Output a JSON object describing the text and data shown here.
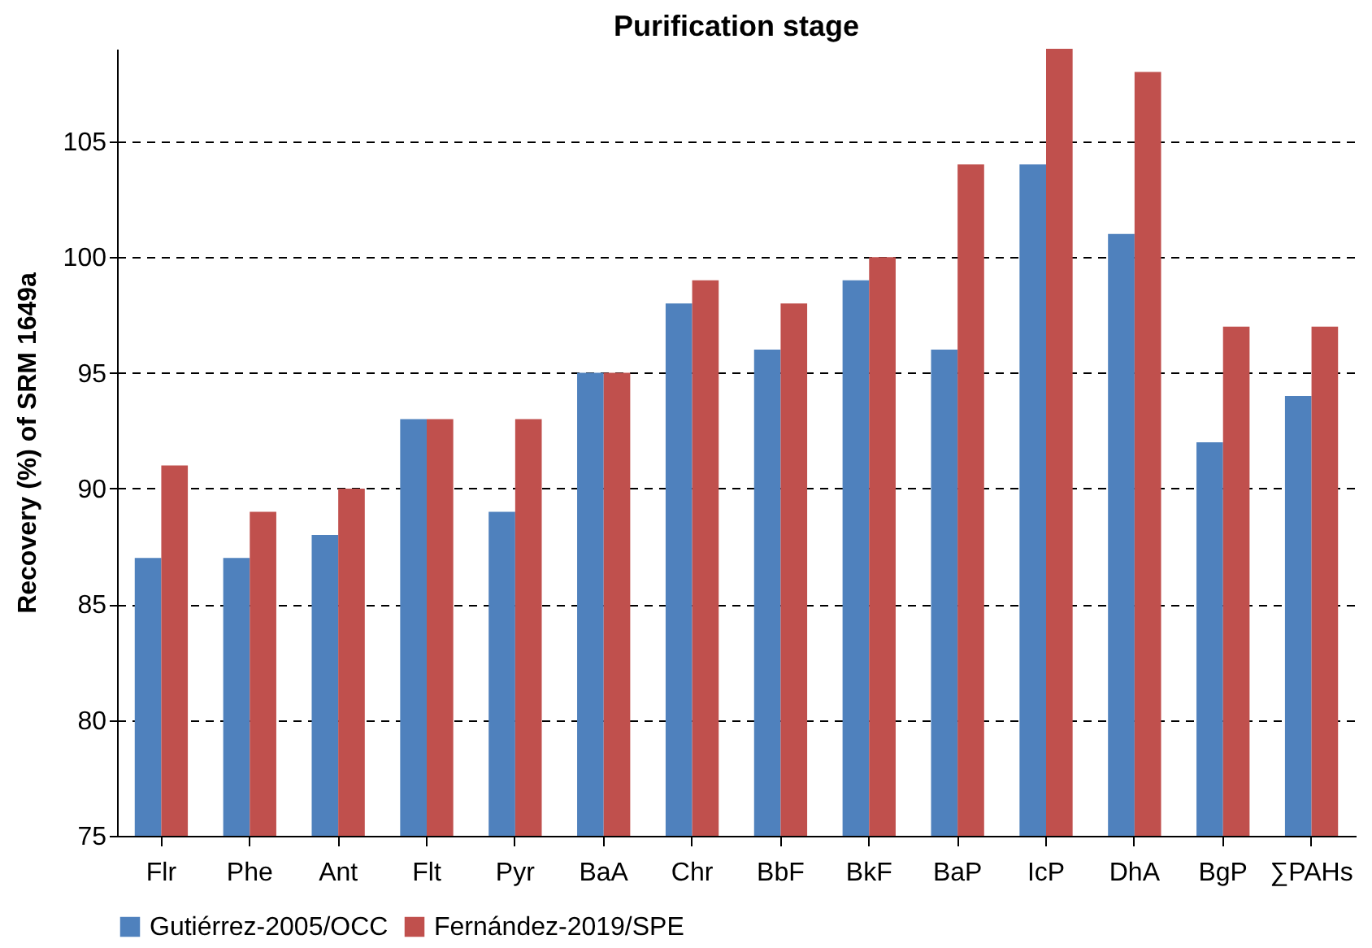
{
  "chart_data": {
    "type": "bar",
    "title": "Purification stage",
    "ylabel": "Recovery (%) of SRM 1649a",
    "categories": [
      "Flr",
      "Phe",
      "Ant",
      "Flt",
      "Pyr",
      "BaA",
      "Chr",
      "BbF",
      "BkF",
      "BaP",
      "IcP",
      "DhA",
      "BgP",
      "∑PAHs"
    ],
    "series": [
      {
        "name": "Gutiérrez-2005/OCC",
        "color": "#4f81bd",
        "values": [
          87,
          87,
          88,
          93,
          89,
          95,
          98,
          96,
          99,
          96,
          104,
          101,
          92,
          94
        ]
      },
      {
        "name": "Fernández-2019/SPE",
        "color": "#c0504d",
        "values": [
          91,
          89,
          90,
          93,
          93,
          95,
          99,
          98,
          100,
          104,
          109,
          108,
          97,
          97
        ]
      }
    ],
    "ylim": [
      75,
      109
    ],
    "yticks": [
      75,
      80,
      85,
      90,
      95,
      100,
      105
    ],
    "grid": "y",
    "legend": "bottom"
  }
}
